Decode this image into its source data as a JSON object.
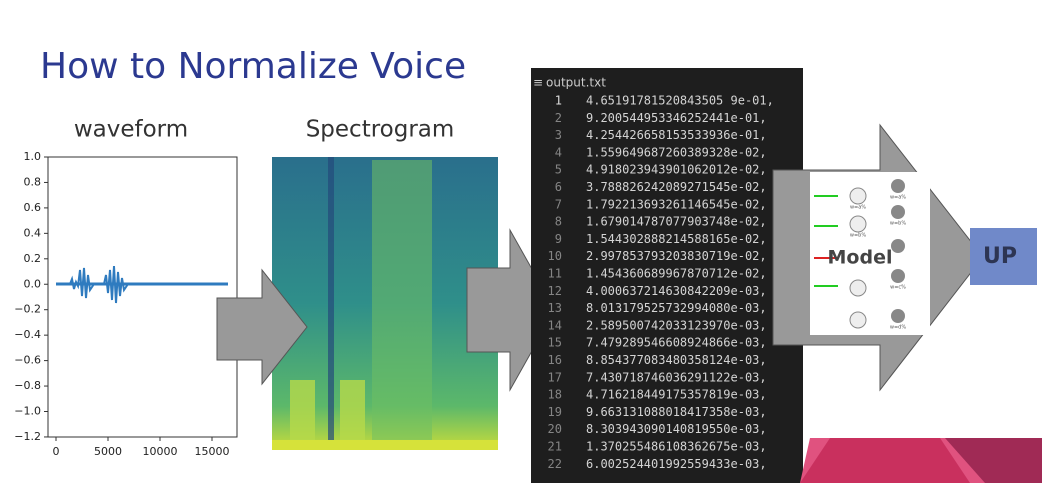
{
  "title": "How to Normalize Voice",
  "waveform": {
    "label": "waveform",
    "yticks": [
      "1.0",
      "0.8",
      "0.6",
      "0.4",
      "0.2",
      "0.0",
      "−0.2",
      "−0.4",
      "−0.6",
      "−0.8",
      "−1.0",
      "−1.2"
    ],
    "xticks": [
      "0",
      "5000",
      "10000",
      "15000"
    ]
  },
  "spectrogram": {
    "label": "Spectrogram"
  },
  "editor": {
    "filename": "output.txt",
    "lines": [
      {
        "number": 1,
        "text": "4.65191781520843505 9e-01,"
      },
      {
        "number": 2,
        "text": "9.200544953346252441e-01,"
      },
      {
        "number": 3,
        "text": "4.254426658153533936e-01,"
      },
      {
        "number": 4,
        "text": "1.559649687260389328e-02,"
      },
      {
        "number": 5,
        "text": "4.918023943901062012e-02,"
      },
      {
        "number": 6,
        "text": "3.788826242089271545e-02,"
      },
      {
        "number": 7,
        "text": "1.792213693261146545e-02,"
      },
      {
        "number": 8,
        "text": "1.679014787077903748e-02,"
      },
      {
        "number": 9,
        "text": "1.544302888214588165e-02,"
      },
      {
        "number": 10,
        "text": "2.997853793203830719e-02,"
      },
      {
        "number": 11,
        "text": "1.454360689967870712e-02,"
      },
      {
        "number": 12,
        "text": "4.000637214630842209e-03,"
      },
      {
        "number": 13,
        "text": "8.013179525732994080e-03,"
      },
      {
        "number": 14,
        "text": "2.589500742033123970e-03,"
      },
      {
        "number": 15,
        "text": "7.479289546608924866e-03,"
      },
      {
        "number": 16,
        "text": "8.854377083480358124e-03,"
      },
      {
        "number": 17,
        "text": "7.430718746036291122e-03,"
      },
      {
        "number": 18,
        "text": "4.716218449175357819e-03,"
      },
      {
        "number": 19,
        "text": "9.663131088018417358e-03,"
      },
      {
        "number": 20,
        "text": "8.303943090140819550e-03,"
      },
      {
        "number": 21,
        "text": "1.370255486108362675e-03,"
      },
      {
        "number": 22,
        "text": "6.002524401992559433e-03,"
      }
    ]
  },
  "model": {
    "label": "Model",
    "weights": [
      "w=a%",
      "w=b%",
      "w=a%",
      "w=b%",
      "w=c%",
      "w=d%"
    ]
  },
  "output": {
    "label": "UP"
  }
}
